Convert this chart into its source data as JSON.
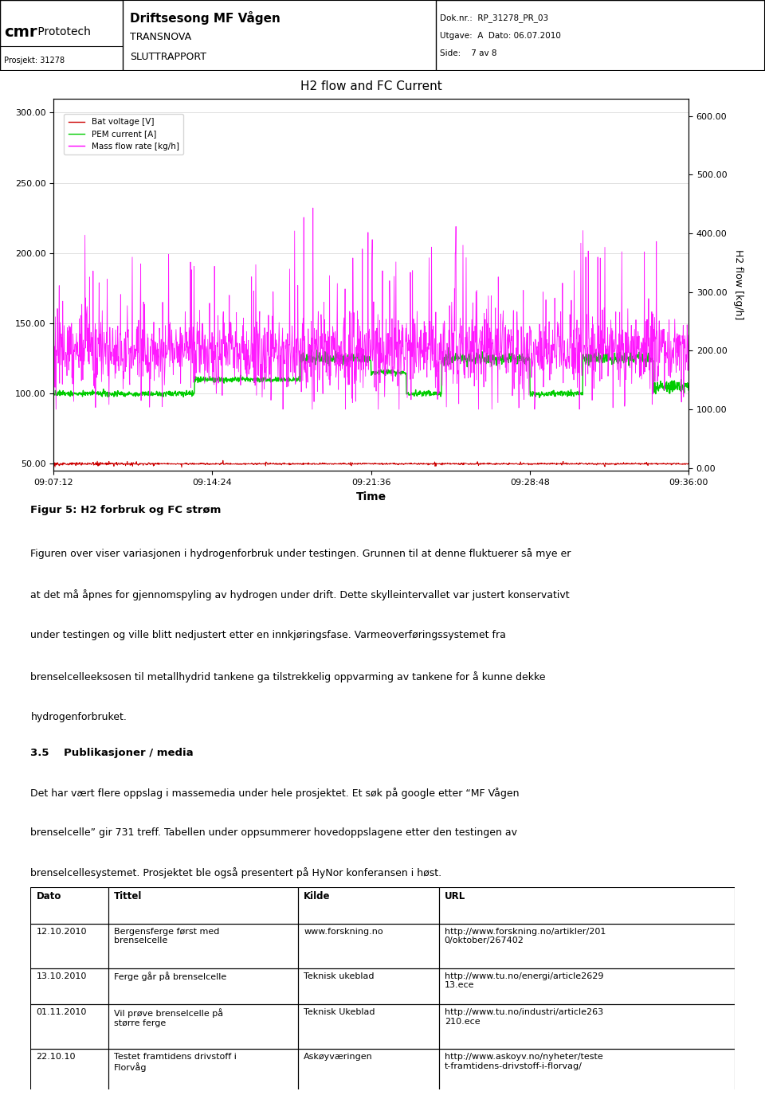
{
  "header": {
    "logo_text": "cmr Prototech",
    "title_main": "Driftsesong MF Vågen",
    "title_sub1": "TRANSNOVA",
    "title_sub2": "SLUTTRAPPORT",
    "prosjekt": "Prosjekt: 31278",
    "dok_nr": "Dok.nr.:  RP_31278_PR_03",
    "utgave": "Utgave:  A  Dato: 06.07.2010",
    "side": "Side:    7 av 8"
  },
  "chart": {
    "title": "H2 flow and FC Current",
    "xlabel": "Time",
    "ylabel_left": "",
    "ylabel_right": "H2 flow [kg/h]",
    "yticks_left": [
      50.0,
      100.0,
      150.0,
      200.0,
      250.0,
      300.0
    ],
    "yticks_right": [
      0.0,
      100.0,
      200.0,
      300.0,
      400.0,
      500.0,
      600.0
    ],
    "ylim_left": [
      45,
      310
    ],
    "ylim_right": [
      -5,
      630
    ],
    "xtick_labels": [
      "09:07:12",
      "09:14:24",
      "09:21:36",
      "09:28:48",
      "09:36:00"
    ],
    "legend": [
      {
        "label": "Bat voltage [V]",
        "color": "#cc0000"
      },
      {
        "label": "PEM current [A]",
        "color": "#00bb00"
      },
      {
        "label": "Mass flow rate [kg/h]",
        "color": "#ff00ff"
      }
    ]
  },
  "figure_caption": {
    "bold": "Figur 5: H2 forbruk og FC strøm",
    "text1": "Figuren over viser variasjonen i hydrogenforbruk under testingen. Grunnen til at denne fluktuerer så mye er",
    "text2": "at det må åpnes for gjennomspyling av hydrogen under drift. Dette skylleintervallet var justert konservativt",
    "text3": "under testingen og ville blitt nedjustert etter en innkjøringsfase. Varmeoverføringssystemet fra",
    "text4": "brenselcelleeksosen til metallhydrid tankene ga tilstrekkelig oppvarming av tankene for å kunne dekke",
    "text5": "hydrogenforbruket."
  },
  "section": {
    "heading": "3.5    Publikasjoner / media",
    "para1": "Det har vært flere oppslag i massemedia under hele prosjektet. Et søk på google etter “MF Vågen",
    "para2": "brenselcelle” gir 731 treff. Tabellen under oppsummerer hovedoppslagene etter den testingen av",
    "para3": "brenselcellesystemet. Prosjektet ble også presentert på HyNor konferansen i høst."
  },
  "table": {
    "headers": [
      "Dato",
      "Tittel",
      "Kilde",
      "URL"
    ],
    "rows": [
      [
        "12.10.2010",
        "Bergensferge først med\nbrenselcelle",
        "www.forskning.no",
        "http://www.forskning.no/artikler/201\n0/oktober/267402"
      ],
      [
        "13.10.2010",
        "Ferge går på brenselcelle",
        "Teknisk ukeblad",
        "http://www.tu.no/energi/article2629\n13.ece"
      ],
      [
        "01.11.2010",
        "Vil prøve brenselcelle på\nstørre ferge",
        "Teknisk Ukeblad",
        "http://www.tu.no/industri/article263\n210.ece"
      ],
      [
        "22.10.10",
        "Testet framtidens drivstoff i\nFlorvåg",
        "Askøyværingen",
        "http://www.askoyv.no/nyheter/teste\nt-framtidens-drivstoff-i-florvag/"
      ]
    ]
  }
}
